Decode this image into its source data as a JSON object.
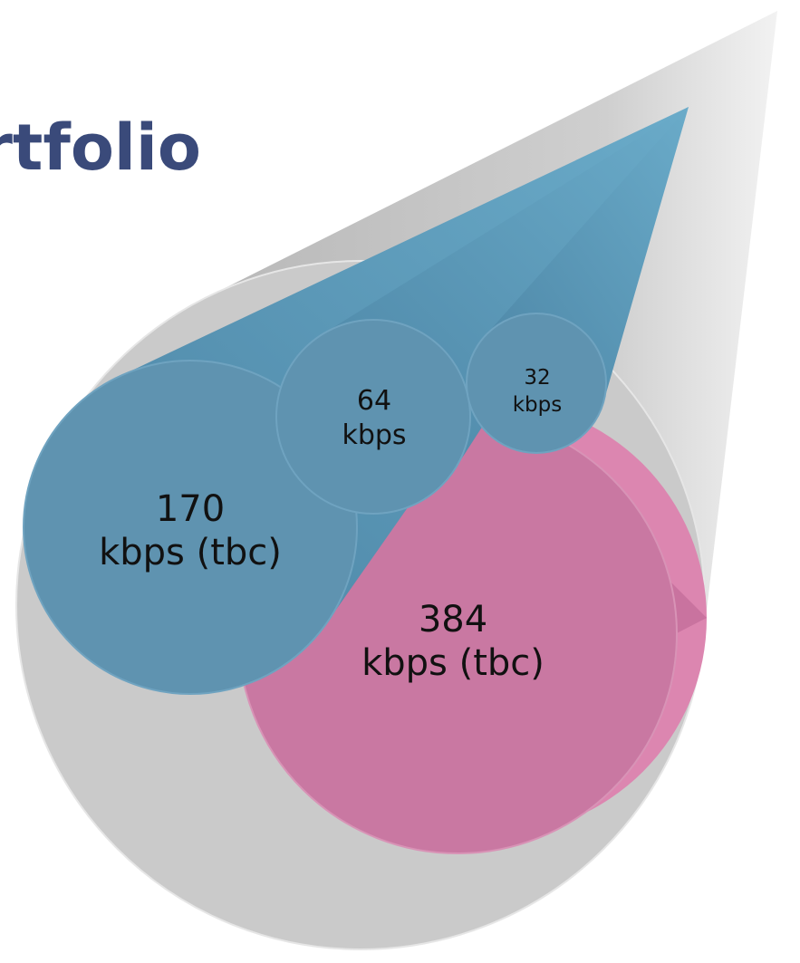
{
  "title": "rtfolio",
  "circles": [
    {
      "lines": [
        "170",
        "kbps (tbc)"
      ]
    },
    {
      "lines": [
        "384",
        "kbps (tbc)"
      ]
    },
    {
      "lines": [
        "64",
        "kbps"
      ]
    },
    {
      "lines": [
        "32",
        "kbps"
      ]
    }
  ]
}
